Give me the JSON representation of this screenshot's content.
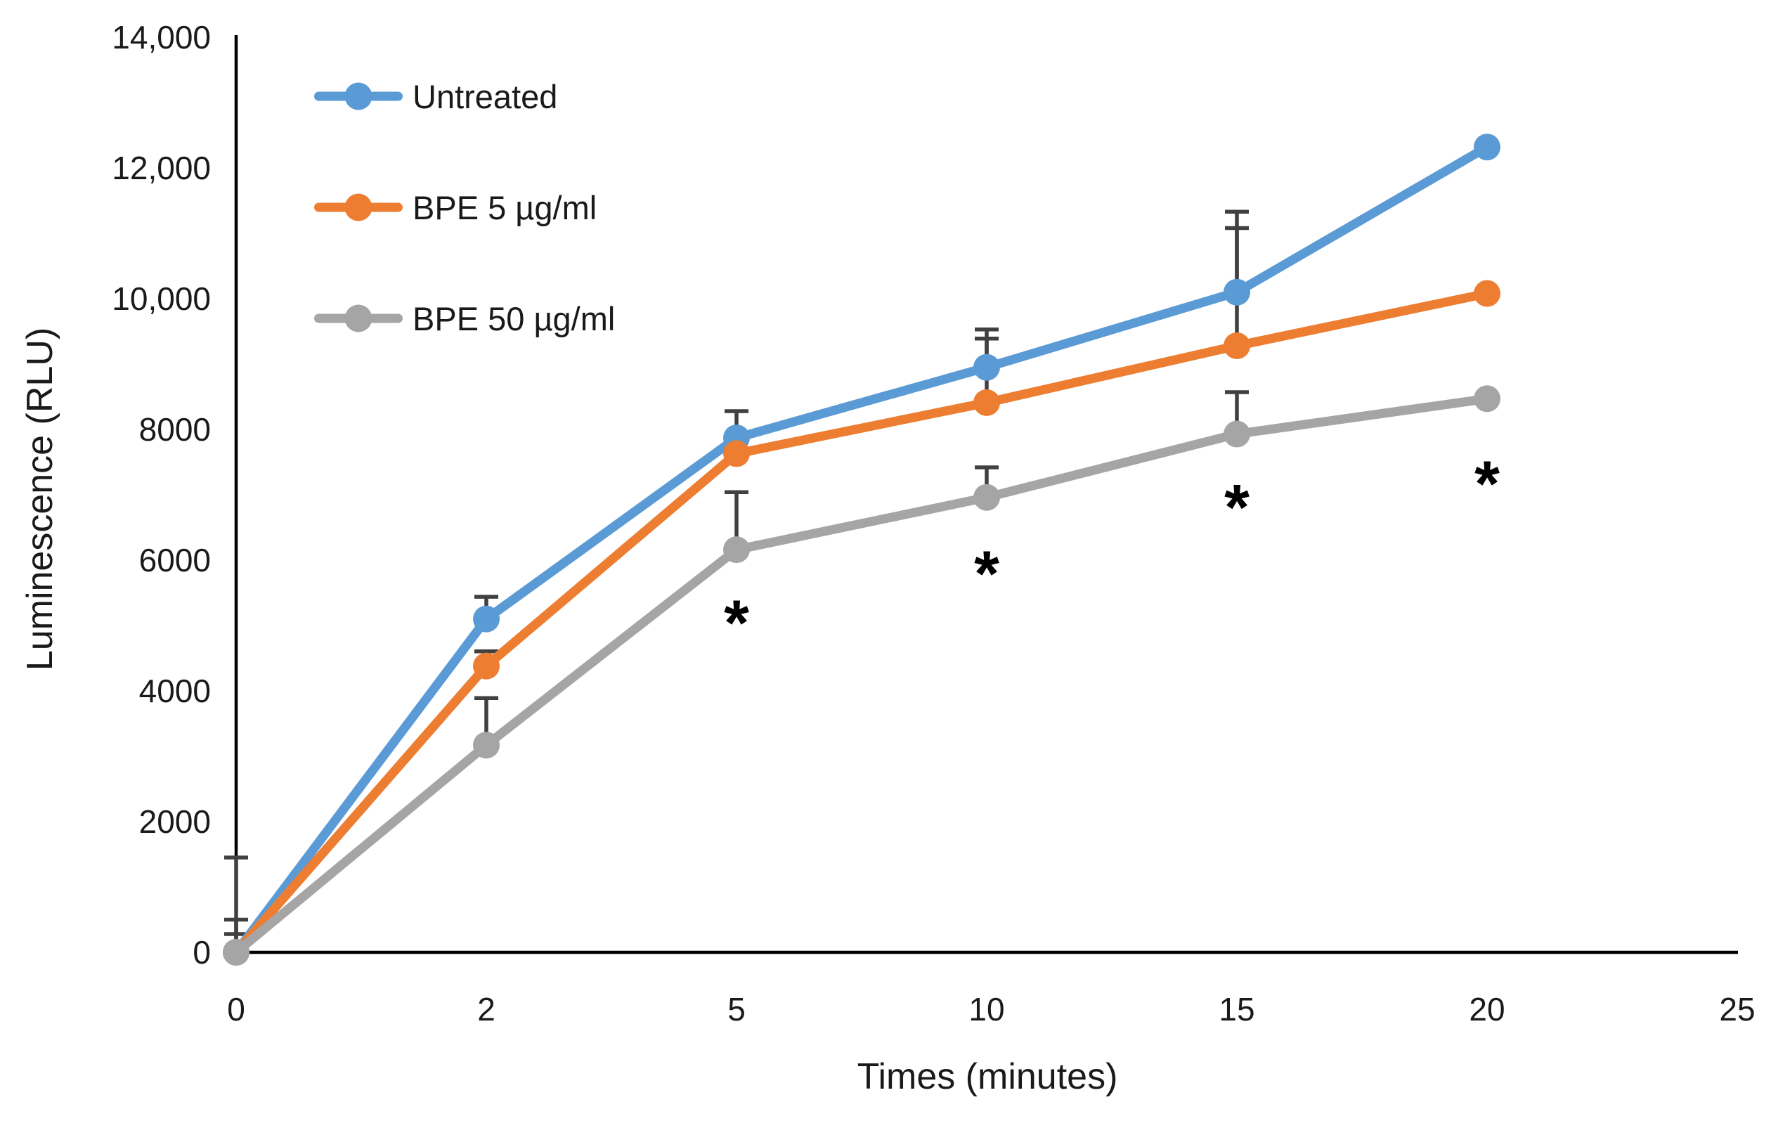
{
  "chart_data": {
    "type": "line",
    "title": "",
    "xlabel": "Times (minutes)",
    "ylabel": "Luminescence (RLU)",
    "x_tick_labels": [
      "0",
      "2",
      "5",
      "10",
      "15",
      "20",
      "25"
    ],
    "x_values_minutes": [
      0,
      2,
      5,
      10,
      15,
      20
    ],
    "ylim": [
      0,
      14000
    ],
    "ytick_interval": 2000,
    "ytick_labels": [
      "0",
      "2000",
      "4000",
      "6000",
      "8000",
      "10,000",
      "12,000",
      "14,000"
    ],
    "grid": false,
    "legend_position": "upper-left-inside",
    "series": [
      {
        "name": "Untreated",
        "color": "#5B9BD5",
        "values": [
          0,
          5100,
          7870,
          8950,
          10100,
          12320
        ],
        "upper_errors": [
          1450,
          340,
          410,
          580,
          1230,
          null
        ]
      },
      {
        "name": "BPE 5 µg/ml",
        "color": "#ED7D31",
        "values": [
          0,
          4380,
          7630,
          8410,
          9280,
          10080
        ],
        "upper_errors": [
          500,
          225,
          null,
          980,
          1800,
          null
        ]
      },
      {
        "name": "BPE 50 µg/ml",
        "color": "#A5A5A5",
        "values": [
          0,
          3170,
          6160,
          6960,
          7930,
          8470
        ],
        "upper_errors": [
          280,
          720,
          880,
          460,
          640,
          null
        ]
      }
    ],
    "significance_marks": [
      {
        "text": "*",
        "x_index": 2,
        "y_value": 5130
      },
      {
        "text": "*",
        "x_index": 3,
        "y_value": 5880
      },
      {
        "text": "*",
        "x_index": 4,
        "y_value": 6900
      },
      {
        "text": "*",
        "x_index": 5,
        "y_value": 7260
      }
    ],
    "colors": {
      "axis": "#000000",
      "error_bar": "#404040",
      "text": "#1a1a1a"
    }
  }
}
